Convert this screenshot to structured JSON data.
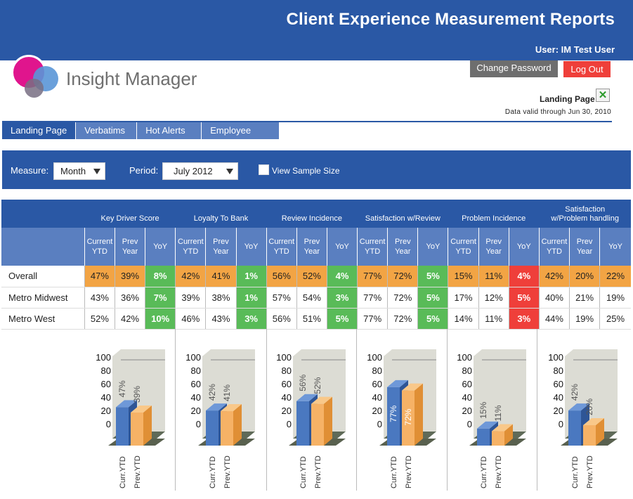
{
  "header": {
    "title": "Client Experience Measurement Reports",
    "user": "User: IM Test User"
  },
  "brand": {
    "name": "Insight Manager"
  },
  "account": {
    "change_password": "Change Password",
    "logout": "Log Out",
    "landing_page": "Landing Page",
    "export_icon": "excel-icon",
    "data_valid": "Data valid through Jun 30, 2010"
  },
  "tabs": [
    {
      "label": "Landing Page",
      "active": true
    },
    {
      "label": "Verbatims"
    },
    {
      "label": "Hot Alerts"
    },
    {
      "label": "Employee Card"
    }
  ],
  "filters": {
    "measure_label": "Measure:",
    "measure_value": "Month",
    "period_label": "Period:",
    "period_value": "July 2012",
    "sample_size_label": "View Sample Size"
  },
  "table": {
    "groups": [
      {
        "title": "Key Driver Score"
      },
      {
        "title": "Loyalty To Bank"
      },
      {
        "title": "Review Incidence"
      },
      {
        "title": "Satisfaction  w/Review"
      },
      {
        "title": "Problem Incidence"
      },
      {
        "title": "Satisfaction w/Problem handling"
      }
    ],
    "subcolumns": [
      "Current YTD",
      "Prev Year",
      "YoY"
    ],
    "rows": [
      {
        "name": "Overall",
        "values": [
          "47%",
          "39%",
          "8%",
          "42%",
          "41%",
          "1%",
          "56%",
          "52%",
          "4%",
          "77%",
          "72%",
          "5%",
          "15%",
          "11%",
          "4%",
          "42%",
          "20%",
          "22%"
        ]
      },
      {
        "name": "Metro Midwest",
        "values": [
          "43%",
          "36%",
          "7%",
          "39%",
          "38%",
          "1%",
          "57%",
          "54%",
          "3%",
          "77%",
          "72%",
          "5%",
          "17%",
          "12%",
          "5%",
          "40%",
          "21%",
          "19%"
        ]
      },
      {
        "name": "Metro West",
        "values": [
          "52%",
          "42%",
          "10%",
          "46%",
          "43%",
          "3%",
          "56%",
          "51%",
          "5%",
          "77%",
          "72%",
          "5%",
          "14%",
          "11%",
          "3%",
          "44%",
          "19%",
          "25%"
        ]
      }
    ],
    "highlight": {
      "overall_color": "#f2a444",
      "positive_color": "#59bb58",
      "negative_color": "#ef3f3a"
    }
  },
  "chart_data": [
    {
      "type": "bar",
      "categories": [
        "Curr.YTD",
        "Prev.YTD"
      ],
      "values": [
        47,
        39
      ],
      "labels": [
        "47%",
        "39%"
      ],
      "ylim": [
        0,
        100
      ],
      "yticks": [
        0,
        20,
        40,
        60,
        80,
        100
      ]
    },
    {
      "type": "bar",
      "categories": [
        "Curr.YTD",
        "Prev.YTD"
      ],
      "values": [
        42,
        41
      ],
      "labels": [
        "42%",
        "41%"
      ],
      "ylim": [
        0,
        100
      ],
      "yticks": [
        0,
        20,
        40,
        60,
        80,
        100
      ]
    },
    {
      "type": "bar",
      "categories": [
        "Curr.YTD",
        "Prev.YTD"
      ],
      "values": [
        56,
        52
      ],
      "labels": [
        "56%",
        "52%"
      ],
      "ylim": [
        0,
        100
      ],
      "yticks": [
        0,
        20,
        40,
        60,
        80,
        100
      ]
    },
    {
      "type": "bar",
      "categories": [
        "Curr.YTD",
        "Prev.YTD"
      ],
      "values": [
        77,
        72
      ],
      "labels": [
        "77%",
        "72%"
      ],
      "ylim": [
        0,
        100
      ],
      "yticks": [
        0,
        20,
        40,
        60,
        80,
        100
      ]
    },
    {
      "type": "bar",
      "categories": [
        "Curr.YTD",
        "Prev.YTD"
      ],
      "values": [
        15,
        11
      ],
      "labels": [
        "15%",
        "11%"
      ],
      "ylim": [
        0,
        100
      ],
      "yticks": [
        0,
        20,
        40,
        60,
        80,
        100
      ]
    },
    {
      "type": "bar",
      "categories": [
        "Curr.YTD",
        "Prev.YTD"
      ],
      "values": [
        42,
        20
      ],
      "labels": [
        "42%",
        "20%"
      ],
      "ylim": [
        0,
        100
      ],
      "yticks": [
        0,
        20,
        40,
        60,
        80,
        100
      ]
    }
  ],
  "colors": {
    "primary": "#2a58a5",
    "secondary": "#5a7fc0",
    "bar_current": "#4a78c0",
    "bar_prev": "#f6b266",
    "logout": "#ef3f3a"
  }
}
